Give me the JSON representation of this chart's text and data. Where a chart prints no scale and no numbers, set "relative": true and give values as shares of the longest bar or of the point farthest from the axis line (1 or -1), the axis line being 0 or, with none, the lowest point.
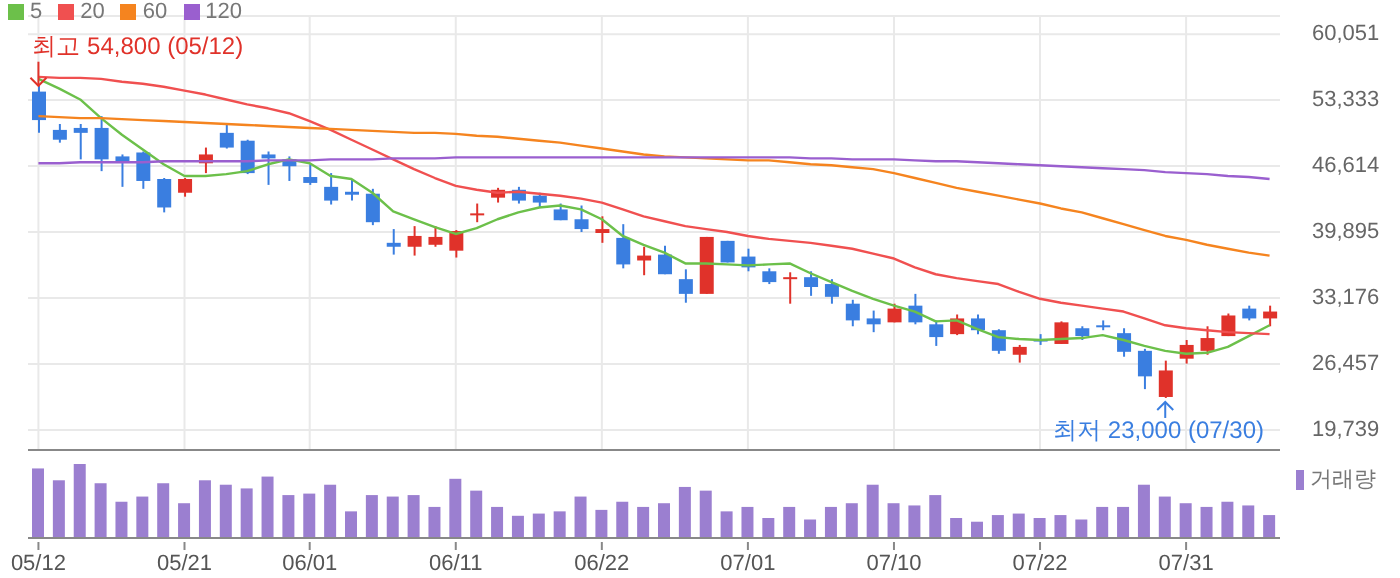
{
  "chart_data": [
    {
      "type": "candlestick",
      "categories": [
        "05/12",
        null,
        null,
        null,
        null,
        null,
        null,
        "05/21",
        null,
        null,
        null,
        null,
        null,
        "06/01",
        null,
        null,
        null,
        null,
        null,
        null,
        "06/11",
        null,
        null,
        null,
        null,
        null,
        null,
        "06/22",
        null,
        null,
        null,
        null,
        null,
        null,
        "07/01",
        null,
        null,
        null,
        null,
        null,
        null,
        "07/10",
        null,
        null,
        null,
        null,
        null,
        null,
        "07/22",
        null,
        null,
        null,
        null,
        null,
        null,
        "07/31",
        null,
        null,
        null,
        null
      ],
      "ohlc": [
        [
          54200,
          54800,
          50000,
          51300
        ],
        [
          50300,
          50900,
          49000,
          49300
        ],
        [
          50500,
          50900,
          47300,
          50000
        ],
        [
          50500,
          51700,
          46100,
          47300
        ],
        [
          47600,
          47800,
          44500,
          47100
        ],
        [
          48000,
          48100,
          44300,
          45100
        ],
        [
          45300,
          45400,
          41900,
          42400
        ],
        [
          43900,
          45400,
          43500,
          45300
        ],
        [
          46900,
          48500,
          45900,
          47800
        ],
        [
          50000,
          50900,
          48400,
          48500
        ],
        [
          49200,
          49300,
          45800,
          45900
        ],
        [
          47800,
          48100,
          44700,
          47400
        ],
        [
          47300,
          47600,
          45100,
          46600
        ],
        [
          45500,
          46800,
          44700,
          44900
        ],
        [
          44500,
          45900,
          42700,
          43100
        ],
        [
          44000,
          45300,
          43100,
          43700
        ],
        [
          43800,
          44300,
          40600,
          40900
        ],
        [
          38800,
          40200,
          37600,
          38400
        ],
        [
          38400,
          40500,
          37500,
          39500
        ],
        [
          38600,
          40500,
          38400,
          39400
        ],
        [
          38000,
          40100,
          37300,
          40000
        ],
        [
          41700,
          42800,
          40900,
          41800
        ],
        [
          43400,
          44400,
          42900,
          44200
        ],
        [
          44200,
          44500,
          42800,
          43100
        ],
        [
          43600,
          43900,
          42400,
          42900
        ],
        [
          42200,
          42800,
          41100,
          41100
        ],
        [
          41200,
          42600,
          39900,
          40200
        ],
        [
          39800,
          41500,
          38800,
          40200
        ],
        [
          39300,
          40700,
          36200,
          36600
        ],
        [
          37000,
          38400,
          35500,
          37500
        ],
        [
          37600,
          38500,
          35600,
          35600
        ],
        [
          35100,
          36100,
          32700,
          33600
        ],
        [
          33600,
          39400,
          33600,
          39400
        ],
        [
          39000,
          39000,
          36800,
          36800
        ],
        [
          37400,
          38200,
          35900,
          36300
        ],
        [
          35900,
          36200,
          34600,
          34800
        ],
        [
          35200,
          35800,
          32600,
          35300
        ],
        [
          35300,
          35900,
          33400,
          34300
        ],
        [
          34600,
          35100,
          32600,
          33300
        ],
        [
          32600,
          33000,
          30300,
          30900
        ],
        [
          31100,
          31900,
          29700,
          30500
        ],
        [
          30700,
          32600,
          30700,
          32100
        ],
        [
          32400,
          33600,
          30500,
          30700
        ],
        [
          30500,
          30900,
          28300,
          29200
        ],
        [
          29500,
          31500,
          29400,
          31100
        ],
        [
          31100,
          31500,
          29500,
          29900
        ],
        [
          29900,
          30000,
          27500,
          27800
        ],
        [
          27400,
          28400,
          26600,
          28200
        ],
        [
          28950,
          29500,
          28400,
          28850
        ],
        [
          28500,
          30800,
          28500,
          30700
        ],
        [
          30100,
          30300,
          28900,
          29300
        ],
        [
          30400,
          30900,
          29900,
          30300
        ],
        [
          29600,
          30100,
          27200,
          27700
        ],
        [
          27800,
          28000,
          23900,
          25200
        ],
        [
          23100,
          26800,
          23000,
          25800
        ],
        [
          27000,
          28900,
          26500,
          28400
        ],
        [
          27800,
          30300,
          27400,
          29100
        ],
        [
          29300,
          31600,
          29300,
          31400
        ],
        [
          32100,
          32400,
          30900,
          31100
        ],
        [
          31100,
          32400,
          30300,
          31800
        ]
      ],
      "colors": [
        "#3a7ee0",
        "#3a7ee0",
        "#3a7ee0",
        "#3a7ee0",
        "#3a7ee0",
        "#3a7ee0",
        "#3a7ee0",
        "#e0322a",
        "#e0322a",
        "#3a7ee0",
        "#3a7ee0",
        "#3a7ee0",
        "#3a7ee0",
        "#3a7ee0",
        "#3a7ee0",
        "#3a7ee0",
        "#3a7ee0",
        "#3a7ee0",
        "#e0322a",
        "#e0322a",
        "#e0322a",
        "#e0322a",
        "#e0322a",
        "#3a7ee0",
        "#3a7ee0",
        "#3a7ee0",
        "#3a7ee0",
        "#e0322a",
        "#3a7ee0",
        "#e0322a",
        "#3a7ee0",
        "#3a7ee0",
        "#e0322a",
        "#3a7ee0",
        "#3a7ee0",
        "#3a7ee0",
        "#e0322a",
        "#3a7ee0",
        "#3a7ee0",
        "#3a7ee0",
        "#3a7ee0",
        "#e0322a",
        "#3a7ee0",
        "#3a7ee0",
        "#e0322a",
        "#3a7ee0",
        "#3a7ee0",
        "#e0322a",
        "#3a7ee0",
        "#e0322a",
        "#3a7ee0",
        "#3a7ee0",
        "#3a7ee0",
        "#3a7ee0",
        "#e0322a",
        "#e0322a",
        "#e0322a",
        "#e0322a",
        "#3a7ee0",
        "#e0322a"
      ],
      "series": [
        {
          "type": "line",
          "name": "5",
          "color": "#6cc04a",
          "values": [
            55500,
            54500,
            53400,
            51500,
            49800,
            48300,
            46800,
            45600,
            45600,
            45800,
            46100,
            46800,
            47300,
            46900,
            45600,
            45300,
            43900,
            42000,
            41200,
            40400,
            39700,
            40300,
            41200,
            41900,
            42400,
            42600,
            42200,
            41200,
            39500,
            38600,
            37800,
            36700,
            36700,
            36600,
            36500,
            36600,
            36700,
            35700,
            34800,
            33900,
            33100,
            32400,
            31800,
            30800,
            30900,
            30000,
            29200,
            29000,
            28900,
            29000,
            29100,
            29400,
            28900,
            28300,
            27800,
            27500,
            27600,
            28200,
            29300,
            30400
          ]
        },
        {
          "type": "line",
          "name": "20",
          "color": "#f05050",
          "values": [
            55700,
            55600,
            55600,
            55500,
            55200,
            55000,
            54700,
            54300,
            53900,
            53400,
            52900,
            52500,
            52000,
            51200,
            50300,
            49300,
            48300,
            47300,
            46300,
            45400,
            44600,
            44200,
            43900,
            44000,
            43800,
            43600,
            43300,
            42900,
            42200,
            41500,
            41000,
            40500,
            40200,
            39900,
            39500,
            39200,
            39000,
            38800,
            38500,
            38200,
            37700,
            37200,
            36300,
            35600,
            35200,
            34900,
            34600,
            33800,
            33100,
            32700,
            32400,
            32100,
            31800,
            31100,
            30400,
            30100,
            29900,
            29700,
            29600,
            29500
          ]
        },
        {
          "type": "line",
          "name": "60",
          "color": "#f5841f",
          "values": [
            51700,
            51600,
            51500,
            51500,
            51400,
            51300,
            51200,
            51100,
            51000,
            50900,
            50800,
            50700,
            50600,
            50500,
            50400,
            50300,
            50200,
            50100,
            50000,
            50000,
            49900,
            49700,
            49600,
            49400,
            49200,
            49000,
            48700,
            48400,
            48100,
            47800,
            47600,
            47500,
            47400,
            47300,
            47200,
            47200,
            47000,
            46800,
            46700,
            46500,
            46300,
            45900,
            45400,
            44900,
            44400,
            44000,
            43600,
            43200,
            42800,
            42300,
            41900,
            41300,
            40700,
            40100,
            39500,
            39100,
            38600,
            38200,
            37800,
            37500
          ]
        },
        {
          "type": "line",
          "name": "120",
          "color": "#9a5fcf",
          "values": [
            46900,
            46900,
            47000,
            47000,
            47000,
            47000,
            47100,
            47100,
            47100,
            47100,
            47100,
            47200,
            47200,
            47200,
            47300,
            47300,
            47300,
            47400,
            47400,
            47400,
            47500,
            47500,
            47500,
            47500,
            47500,
            47500,
            47500,
            47500,
            47500,
            47500,
            47500,
            47500,
            47500,
            47500,
            47500,
            47500,
            47500,
            47400,
            47400,
            47300,
            47300,
            47300,
            47200,
            47100,
            47100,
            47000,
            46900,
            46800,
            46700,
            46600,
            46500,
            46400,
            46300,
            46200,
            46000,
            45900,
            45800,
            45600,
            45500,
            45300
          ]
        }
      ],
      "ylim": [
        17700,
        61900
      ],
      "yticks": [
        {
          "value": 19739,
          "label": "19,739"
        },
        {
          "value": 26457,
          "label": "26,457"
        },
        {
          "value": 33176,
          "label": "33,176"
        },
        {
          "value": 39895,
          "label": "39,895"
        },
        {
          "value": 46614,
          "label": "46,614"
        },
        {
          "value": 53333,
          "label": "53,333"
        },
        {
          "value": 60051,
          "label": "60,051"
        }
      ],
      "grid": true,
      "legend": "top left",
      "marker": "none",
      "tick_labels": "y",
      "annotations": [
        {
          "text": "최고 54,800 (05/12)",
          "x": "05/12",
          "y": 54800
        },
        {
          "text": "최저 23,000 (07/30)",
          "y": 23000
        }
      ]
    },
    {
      "type": "bar",
      "relative": true,
      "categories": [
        "05/12",
        null,
        null,
        null,
        null,
        null,
        null,
        "05/21",
        null,
        null,
        null,
        null,
        null,
        "06/01",
        null,
        null,
        null,
        null,
        null,
        null,
        "06/11",
        null,
        null,
        null,
        null,
        null,
        null,
        "06/22",
        null,
        null,
        null,
        null,
        null,
        null,
        "07/01",
        null,
        null,
        null,
        null,
        null,
        null,
        "07/10",
        null,
        null,
        null,
        null,
        null,
        null,
        "07/22",
        null,
        null,
        null,
        null,
        null,
        null,
        "07/31",
        null,
        null,
        null,
        null
      ],
      "series": [
        {
          "name": "거래량",
          "color": "#9b7fd0",
          "values": [
            0.94,
            0.78,
            1,
            0.74,
            0.49,
            0.56,
            0.74,
            0.47,
            0.78,
            0.72,
            0.67,
            0.83,
            0.58,
            0.6,
            0.72,
            0.36,
            0.58,
            0.56,
            0.58,
            0.42,
            0.8,
            0.64,
            0.42,
            0.3,
            0.33,
            0.36,
            0.56,
            0.38,
            0.49,
            0.42,
            0.47,
            0.69,
            0.64,
            0.36,
            0.42,
            0.27,
            0.42,
            0.25,
            0.42,
            0.47,
            0.72,
            0.47,
            0.44,
            0.58,
            0.27,
            0.22,
            0.31,
            0.33,
            0.27,
            0.31,
            0.25,
            0.42,
            0.42,
            0.72,
            0.56,
            0.47,
            0.42,
            0.49,
            0.44,
            0.31
          ]
        }
      ],
      "legend": "right",
      "grid": false
    }
  ]
}
